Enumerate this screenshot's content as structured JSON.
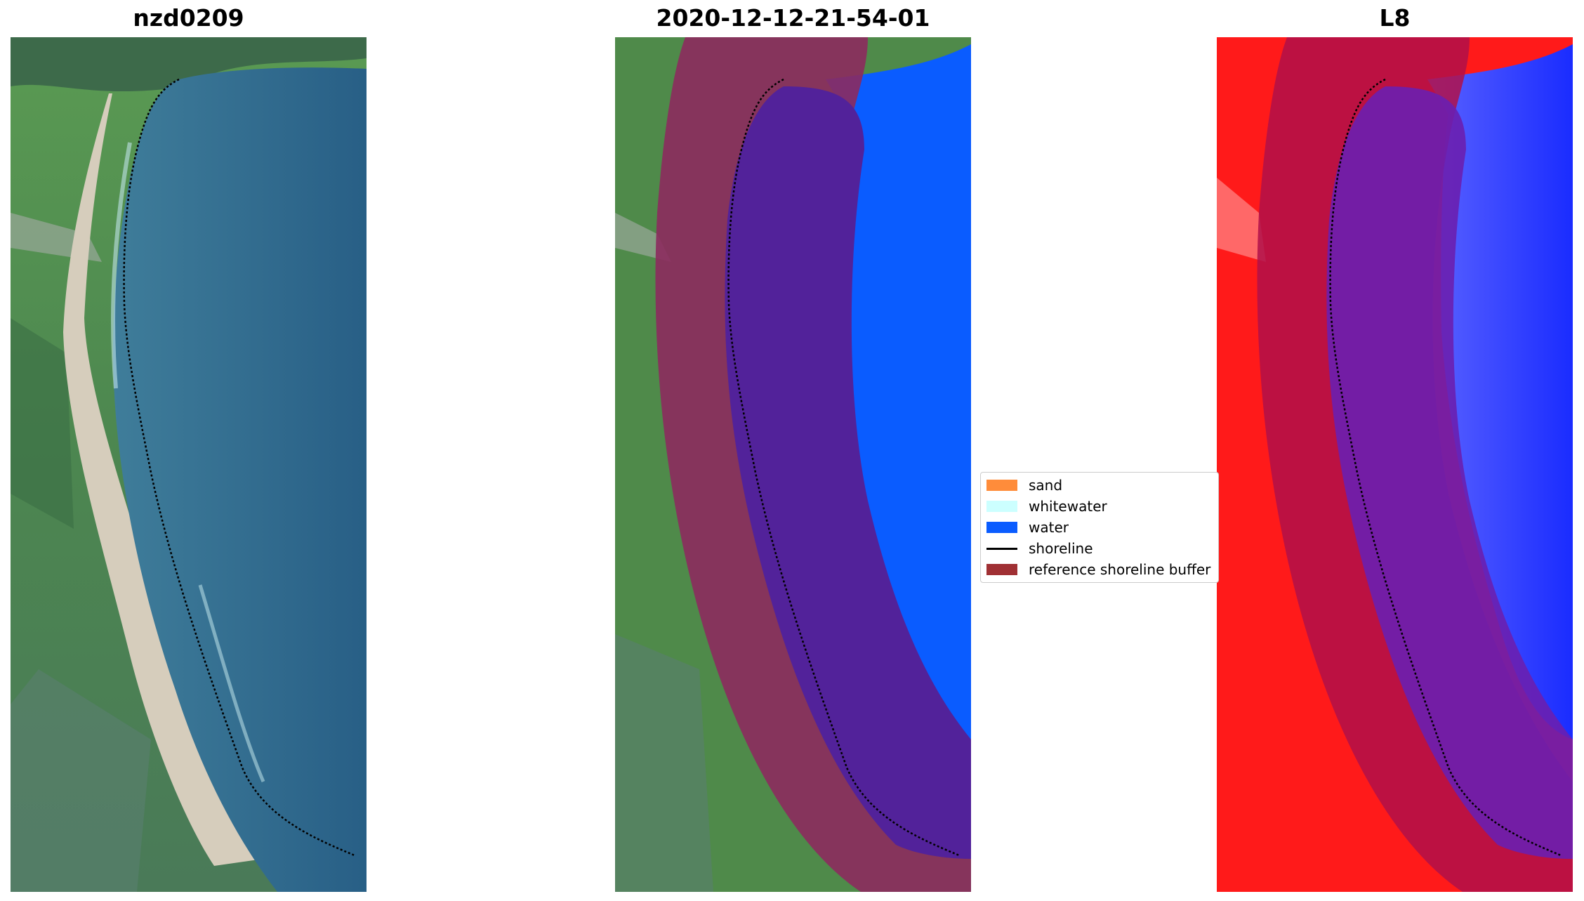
{
  "panels": [
    {
      "id": "rgb",
      "title": "nzd0209"
    },
    {
      "id": "classified",
      "title": "2020-12-12-21-54-01"
    },
    {
      "id": "index",
      "title": "L8"
    }
  ],
  "legend": {
    "items": [
      {
        "label": "sand",
        "color": "#ff8c3a",
        "kind": "patch"
      },
      {
        "label": "whitewater",
        "color": "#ccffff",
        "kind": "patch"
      },
      {
        "label": "water",
        "color": "#0a5cff",
        "kind": "patch"
      },
      {
        "label": "shoreline",
        "color": "#000000",
        "kind": "line"
      },
      {
        "label": "reference shoreline buffer",
        "color": "#a03034",
        "kind": "patch"
      }
    ]
  },
  "colors": {
    "sea": "#2e6a90",
    "sand": "#d9d0c0",
    "vegetation": "#4f8a4a",
    "water_class": "#0a5cff",
    "buffer": "#8c2a5e",
    "buffer_on_water": "#52229a",
    "index_land": "#ff1a1a",
    "index_water": "#2b3bff"
  }
}
